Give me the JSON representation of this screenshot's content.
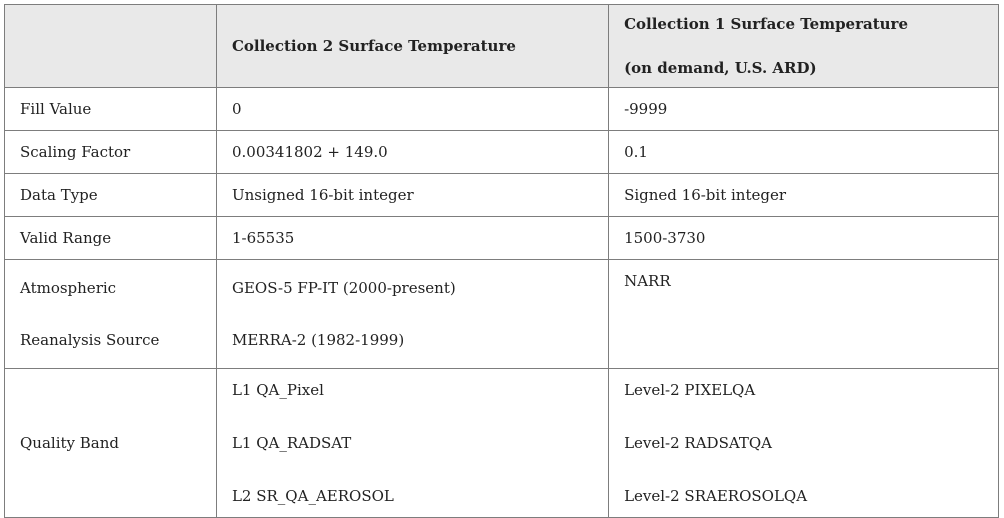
{
  "table": {
    "headers": [
      "",
      "Collection 2 Surface Temperature",
      [
        "Collection 1 Surface Temperature",
        "(on demand, U.S. ARD)"
      ]
    ],
    "rows": [
      {
        "label": "Fill Value",
        "c2": "0",
        "c1": "-9999"
      },
      {
        "label": "Scaling Factor",
        "c2": "0.00341802 + 149.0",
        "c1": "0.1"
      },
      {
        "label": "Data Type",
        "c2": "Unsigned 16-bit integer",
        "c1": "Signed 16-bit integer"
      },
      {
        "label": "Valid Range",
        "c2": "1-65535",
        "c1": "1500-3730"
      },
      {
        "label": [
          "Atmospheric",
          "Reanalysis Source"
        ],
        "c2": [
          "GEOS-5 FP-IT (2000-present)",
          "MERRA-2 (1982-1999)"
        ],
        "c1": "NARR"
      },
      {
        "label": "Quality Band",
        "c2": [
          "L1 QA_Pixel",
          "L1 QA_RADSAT",
          "L2 SR_QA_AEROSOL"
        ],
        "c1": [
          "Level-2 PIXELQA",
          "Level-2 RADSATQA",
          "Level-2 SRAEROSOLQA"
        ]
      }
    ]
  },
  "colors": {
    "header_bg": "#e9e9e9",
    "border": "#7d7d7d",
    "text": "#222222"
  }
}
